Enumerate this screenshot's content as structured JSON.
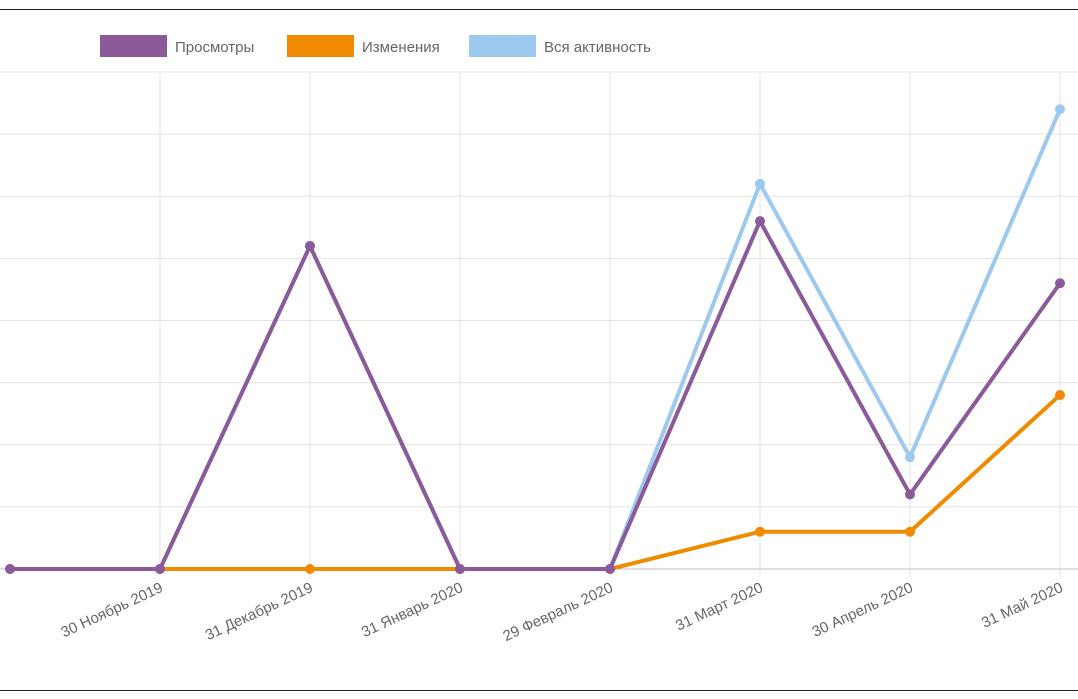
{
  "chart_data": {
    "type": "line",
    "x": [
      "",
      "30 Ноябрь 2019",
      "31 Декабрь 2019",
      "31 Январь 2020",
      "29 Февраль 2020",
      "31 Март 2020",
      "30 Апрель 2020",
      "31 Май 2020"
    ],
    "series": [
      {
        "name": "Просмотры",
        "color": "#8a5a9a",
        "values": [
          0,
          0,
          26,
          0,
          0,
          28,
          6,
          23
        ]
      },
      {
        "name": "Изменения",
        "color": "#f08a00",
        "values": [
          0,
          0,
          0,
          0,
          0,
          3,
          3,
          14
        ]
      },
      {
        "name": "Вся активность",
        "color": "#9ec9ee",
        "values": [
          0,
          0,
          26,
          0,
          0,
          31,
          9,
          37
        ]
      }
    ],
    "ylim": [
      0,
      40
    ],
    "y_grid_step": 5,
    "grid": true,
    "legend_position": "top-left"
  }
}
